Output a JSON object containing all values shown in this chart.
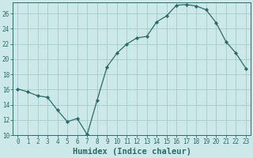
{
  "x": [
    0,
    1,
    2,
    3,
    4,
    5,
    6,
    7,
    8,
    9,
    10,
    11,
    12,
    13,
    14,
    15,
    16,
    17,
    18,
    19,
    20,
    21,
    22,
    23
  ],
  "y": [
    16.1,
    15.7,
    15.2,
    15.0,
    13.3,
    11.8,
    12.2,
    10.1,
    14.6,
    19.0,
    20.8,
    22.0,
    22.8,
    23.0,
    24.9,
    25.7,
    27.1,
    27.2,
    27.0,
    26.5,
    24.8,
    22.3,
    20.8,
    18.8
  ],
  "line_color": "#2d6b6b",
  "marker": "D",
  "marker_size": 2.2,
  "bg_color": "#cce8e8",
  "grid_color": "#aacece",
  "xlabel": "Humidex (Indice chaleur)",
  "xlim": [
    -0.5,
    23.5
  ],
  "ylim": [
    10,
    27.5
  ],
  "yticks": [
    10,
    12,
    14,
    16,
    18,
    20,
    22,
    24,
    26
  ],
  "xticks": [
    0,
    1,
    2,
    3,
    4,
    5,
    6,
    7,
    8,
    9,
    10,
    11,
    12,
    13,
    14,
    15,
    16,
    17,
    18,
    19,
    20,
    21,
    22,
    23
  ],
  "tick_color": "#2d6b6b",
  "xlabel_fontsize": 7.5,
  "tick_fontsize": 5.5,
  "axis_color": "#2d6b6b"
}
